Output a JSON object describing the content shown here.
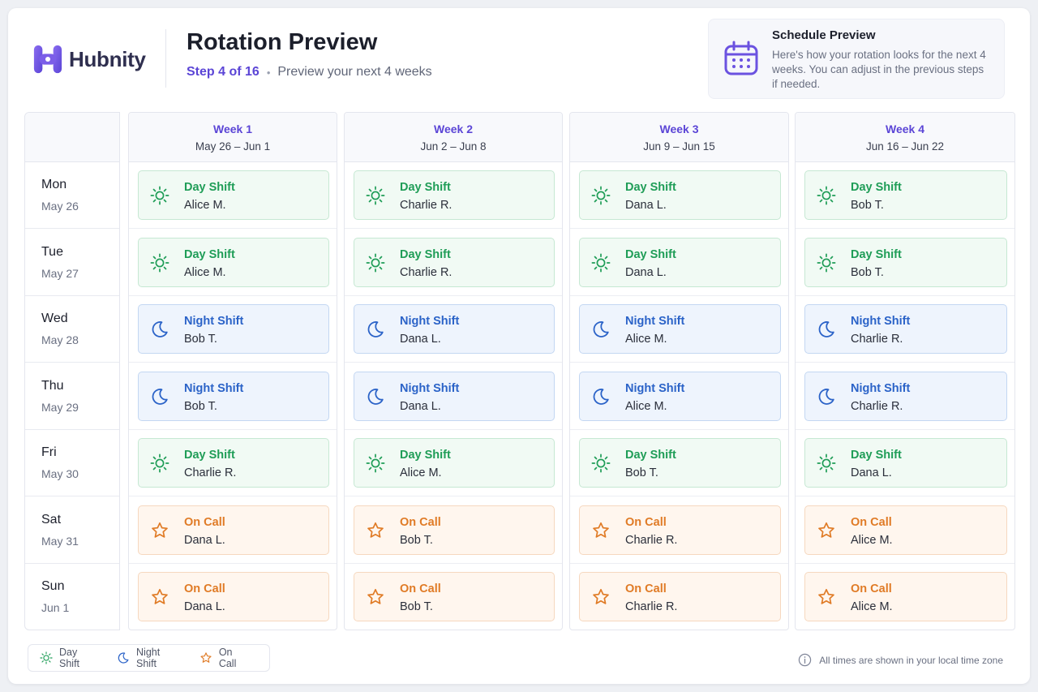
{
  "brand": {
    "name": "Hubnity",
    "color": "#5b45d6"
  },
  "header": {
    "title": "Rotation Preview",
    "step": "Step 4 of 16",
    "separator": "•",
    "description": "Preview your next 4 weeks"
  },
  "info": {
    "title": "Schedule Preview",
    "text": "Here's how your rotation looks for the next 4 weeks. You can adjust in the previous steps if needed.",
    "icon": "calendar-icon"
  },
  "days": [
    {
      "name": "Mon",
      "date": "May 26"
    },
    {
      "name": "Tue",
      "date": "May 27"
    },
    {
      "name": "Wed",
      "date": "May 28"
    },
    {
      "name": "Thu",
      "date": "May 29"
    },
    {
      "name": "Fri",
      "date": "May 30"
    },
    {
      "name": "Sat",
      "date": "May 31"
    },
    {
      "name": "Sun",
      "date": "Jun 1"
    }
  ],
  "shift_types": {
    "day": {
      "label": "Day Shift",
      "icon": "sun-icon",
      "color": "#1f9d57"
    },
    "night": {
      "label": "Night Shift",
      "icon": "moon-icon",
      "color": "#2b63c8"
    },
    "oncall": {
      "label": "On Call",
      "icon": "star-icon",
      "color": "#e07b26"
    }
  },
  "weeks": [
    {
      "label": "Week 1",
      "range": "May 26 – Jun 1",
      "shifts": [
        {
          "type": "day",
          "type_label": "Day Shift",
          "person": "Alice M."
        },
        {
          "type": "day",
          "type_label": "Day Shift",
          "person": "Alice M."
        },
        {
          "type": "night",
          "type_label": "Night Shift",
          "person": "Bob T."
        },
        {
          "type": "night",
          "type_label": "Night Shift",
          "person": "Bob T."
        },
        {
          "type": "day",
          "type_label": "Day Shift",
          "person": "Charlie R."
        },
        {
          "type": "oncall",
          "type_label": "On Call",
          "person": "Dana L."
        },
        {
          "type": "oncall",
          "type_label": "On Call",
          "person": "Dana L."
        }
      ]
    },
    {
      "label": "Week 2",
      "range": "Jun 2 – Jun 8",
      "shifts": [
        {
          "type": "day",
          "type_label": "Day Shift",
          "person": "Charlie R."
        },
        {
          "type": "day",
          "type_label": "Day Shift",
          "person": "Charlie R."
        },
        {
          "type": "night",
          "type_label": "Night Shift",
          "person": "Dana L."
        },
        {
          "type": "night",
          "type_label": "Night Shift",
          "person": "Dana L."
        },
        {
          "type": "day",
          "type_label": "Day Shift",
          "person": "Alice M."
        },
        {
          "type": "oncall",
          "type_label": "On Call",
          "person": "Bob T."
        },
        {
          "type": "oncall",
          "type_label": "On Call",
          "person": "Bob T."
        }
      ]
    },
    {
      "label": "Week 3",
      "range": "Jun 9 – Jun 15",
      "shifts": [
        {
          "type": "day",
          "type_label": "Day Shift",
          "person": "Dana L."
        },
        {
          "type": "day",
          "type_label": "Day Shift",
          "person": "Dana L."
        },
        {
          "type": "night",
          "type_label": "Night Shift",
          "person": "Alice M."
        },
        {
          "type": "night",
          "type_label": "Night Shift",
          "person": "Alice M."
        },
        {
          "type": "day",
          "type_label": "Day Shift",
          "person": "Bob T."
        },
        {
          "type": "oncall",
          "type_label": "On Call",
          "person": "Charlie R."
        },
        {
          "type": "oncall",
          "type_label": "On Call",
          "person": "Charlie R."
        }
      ]
    },
    {
      "label": "Week 4",
      "range": "Jun 16 – Jun 22",
      "shifts": [
        {
          "type": "day",
          "type_label": "Day Shift",
          "person": "Bob T."
        },
        {
          "type": "day",
          "type_label": "Day Shift",
          "person": "Bob T."
        },
        {
          "type": "night",
          "type_label": "Night Shift",
          "person": "Charlie R."
        },
        {
          "type": "night",
          "type_label": "Night Shift",
          "person": "Charlie R."
        },
        {
          "type": "day",
          "type_label": "Day Shift",
          "person": "Dana L."
        },
        {
          "type": "oncall",
          "type_label": "On Call",
          "person": "Alice M."
        },
        {
          "type": "oncall",
          "type_label": "On Call",
          "person": "Alice M."
        }
      ]
    }
  ],
  "legend": [
    {
      "type": "day",
      "label": "Day Shift"
    },
    {
      "type": "night",
      "label": "Night Shift"
    },
    {
      "type": "oncall",
      "label": "On Call"
    }
  ],
  "footer": {
    "note": "All times are shown in your local time zone",
    "icon": "info-icon"
  }
}
